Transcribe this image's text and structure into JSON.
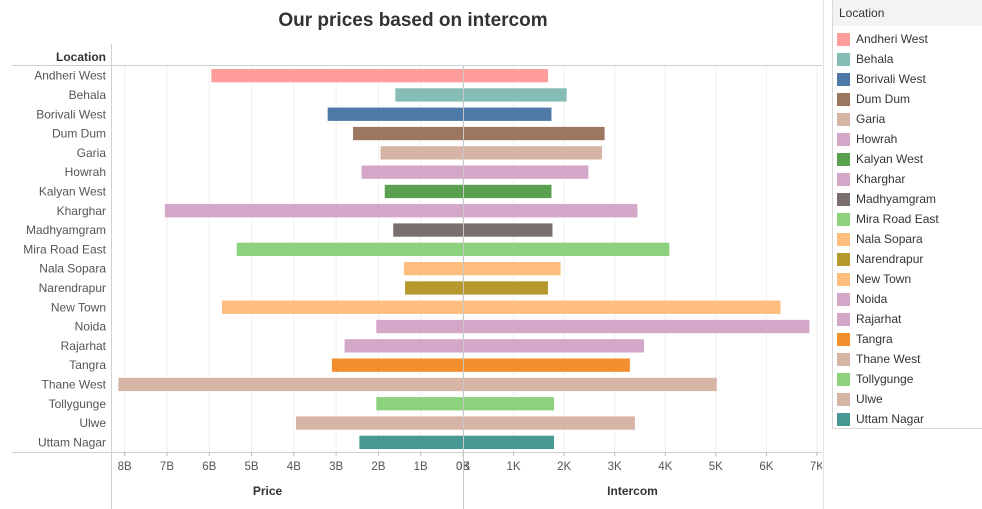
{
  "chart_data": {
    "type": "bar",
    "title": "Our prices based on intercom",
    "dimension_header": "Location",
    "categories": [
      "Andheri West",
      "Behala",
      "Borivali West",
      "Dum Dum",
      "Garia",
      "Howrah",
      "Kalyan West",
      "Kharghar",
      "Madhyamgram",
      "Mira Road East",
      "Nala Sopara",
      "Narendrapur",
      "New Town",
      "Noida",
      "Rajarhat",
      "Tangra",
      "Thane West",
      "Tollygunge",
      "Ulwe",
      "Uttam Nagar"
    ],
    "colors": [
      "#ff9d9a",
      "#86bcb6",
      "#4e79a7",
      "#9d7660",
      "#d7b5a6",
      "#d4a6c8",
      "#59a14f",
      "#d4a6c8",
      "#79706e",
      "#8cd17d",
      "#ffbe7d",
      "#b6992d",
      "#ffbe7d",
      "#d4a6c8",
      "#d4a6c8",
      "#f28e2b",
      "#d7b5a6",
      "#8cd17d",
      "#d7b5a6",
      "#499894"
    ],
    "panels": [
      {
        "measure": "Price",
        "xlabel": "Price",
        "reversed": true,
        "xlim": [
          0,
          8.3
        ],
        "ticks": [
          8,
          7,
          6,
          5,
          4,
          3,
          2,
          1,
          0
        ],
        "tick_labels": [
          "8B",
          "7B",
          "6B",
          "5B",
          "4B",
          "3B",
          "2B",
          "1B",
          "0B"
        ],
        "values": [
          5.95,
          1.6,
          3.2,
          2.6,
          1.95,
          2.4,
          1.85,
          7.05,
          1.65,
          5.35,
          1.4,
          1.37,
          5.7,
          2.05,
          2.8,
          3.1,
          8.15,
          2.05,
          3.95,
          2.45
        ]
      },
      {
        "measure": "Intercom",
        "xlabel": "Intercom",
        "reversed": false,
        "xlim": [
          0,
          7.1
        ],
        "ticks": [
          0,
          1,
          2,
          3,
          4,
          5,
          6,
          7
        ],
        "tick_labels": [
          "0K",
          "1K",
          "2K",
          "3K",
          "4K",
          "5K",
          "6K",
          "7K"
        ],
        "values": [
          1.68,
          2.05,
          1.75,
          2.8,
          2.75,
          2.48,
          1.75,
          3.45,
          1.77,
          4.08,
          1.93,
          1.68,
          6.28,
          6.85,
          3.58,
          3.3,
          5.02,
          1.8,
          3.4,
          1.8
        ]
      }
    ],
    "legend": {
      "title": "Location",
      "placement": "right",
      "items": [
        "Andheri West",
        "Behala",
        "Borivali West",
        "Dum Dum",
        "Garia",
        "Howrah",
        "Kalyan West",
        "Kharghar",
        "Madhyamgram",
        "Mira Road East",
        "Nala Sopara",
        "Narendrapur",
        "New Town",
        "Noida",
        "Rajarhat",
        "Tangra",
        "Thane West",
        "Tollygunge",
        "Ulwe",
        "Uttam Nagar"
      ]
    }
  }
}
